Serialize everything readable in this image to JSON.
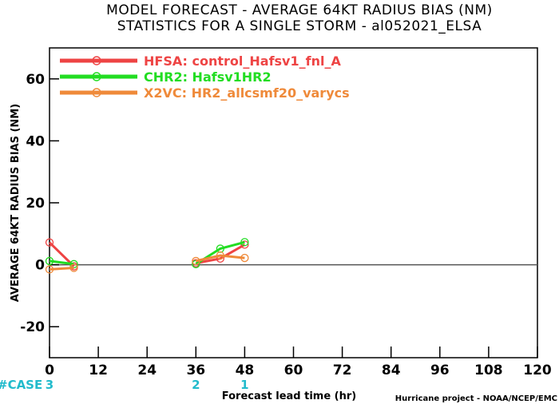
{
  "titles": {
    "line1": "MODEL FORECAST - AVERAGE 64KT RADIUS BIAS (NM)",
    "line2": "STATISTICS FOR A SINGLE STORM - al052021_ELSA"
  },
  "credit": "Hurricane project - NOAA/NCEP/EMC",
  "case_label": "#CASE",
  "colors": {
    "HFSA": "#ee4444",
    "CHR2": "#22dd22",
    "X2VC": "#ef8a3a",
    "case": "#22bbcc",
    "zero_line": "#555555"
  },
  "chart_data": {
    "type": "line",
    "ylabel": "AVERAGE 64KT RADIUS BIAS (NM)",
    "xlabel": "Forecast lead time (hr)",
    "xlim": [
      0,
      120
    ],
    "ylim": [
      -30,
      70
    ],
    "xticks": [
      0,
      12,
      24,
      36,
      48,
      60,
      72,
      84,
      96,
      108,
      120
    ],
    "yticks": [
      -20,
      0,
      20,
      40,
      60
    ],
    "series": [
      {
        "name": "HFSA",
        "label": "HFSA: control_Hafsv1_fnl_A",
        "segments": [
          [
            [
              0,
              7.2
            ],
            [
              6,
              -0.5
            ]
          ],
          [
            [
              36,
              0.5
            ],
            [
              42,
              2.0
            ],
            [
              48,
              6.5
            ]
          ]
        ]
      },
      {
        "name": "CHR2",
        "label": "CHR2: Hafsv1HR2",
        "segments": [
          [
            [
              0,
              1.2
            ],
            [
              6,
              0.2
            ]
          ],
          [
            [
              36,
              0.2
            ],
            [
              42,
              5.2
            ],
            [
              48,
              7.3
            ]
          ]
        ]
      },
      {
        "name": "X2VC",
        "label": "X2VC: HR2_allcsmf20_varycs",
        "segments": [
          [
            [
              0,
              -1.5
            ],
            [
              6,
              -1.0
            ]
          ],
          [
            [
              36,
              1.2
            ],
            [
              42,
              3.0
            ],
            [
              48,
              2.2
            ]
          ]
        ]
      }
    ],
    "cases": [
      {
        "x": 0,
        "n": "3"
      },
      {
        "x": 36,
        "n": "2"
      },
      {
        "x": 48,
        "n": "1"
      }
    ]
  }
}
